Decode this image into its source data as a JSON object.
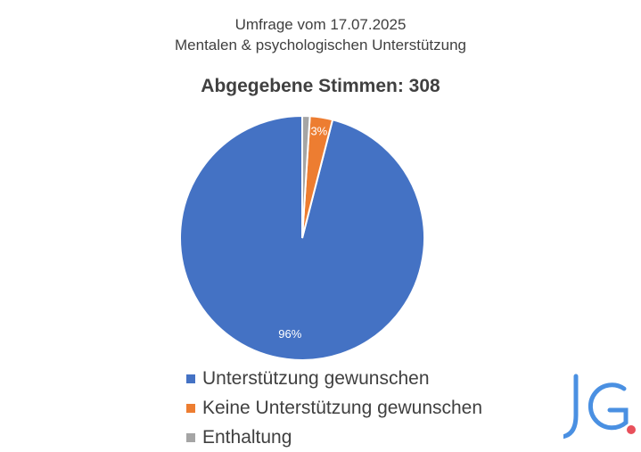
{
  "chart_data": {
    "type": "pie",
    "title": "Umfrage vom 17.07.2025",
    "title_line2": "Mentalen & psychologischen Unterstützung",
    "subtitle": "Abgegebene Stimmen: 308",
    "slices": [
      {
        "label": "Unterstützung gewunschen",
        "value": 96,
        "display": "96%",
        "color": "#4472C4"
      },
      {
        "label": "Keine Unterstützung gewunschen",
        "value": 3,
        "display": "3%",
        "color": "#ED7D31"
      },
      {
        "label": "Enthaltung",
        "value": 1,
        "display": "",
        "color": "#A5A5A5"
      }
    ],
    "legend_position": "bottom"
  },
  "logo": {
    "text": "JG",
    "color": "#4A90E2",
    "dot_color": "#E8505B"
  }
}
